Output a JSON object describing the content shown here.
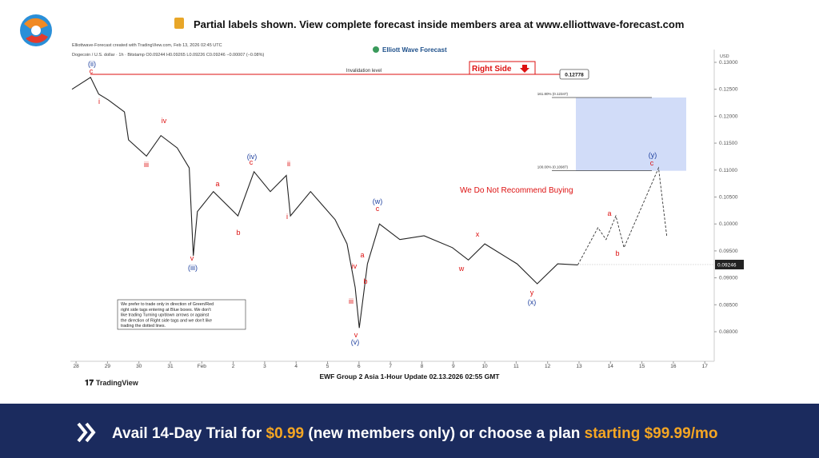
{
  "banner_top": "Partial labels shown. View complete forecast inside members area at www.elliottwave-forecast.com",
  "chart_data": {
    "type": "line",
    "header": "Elliottwave-Forecast created with TradingView.com, Feb 13, 2026 02:45 UTC",
    "subheader": "Dogecoin / U.S. dollar · 1h · Bitstamp  O0.09244 H0.09265 L0.09226 C0.09246 −0.00007 (−0.08%)",
    "brand": "Elliott Wave Forecast",
    "axis_unit": "USD",
    "xlim": [
      -0.18,
      20.3
    ],
    "xticks": [
      {
        "value": 0,
        "label": "28"
      },
      {
        "value": 1,
        "label": "29"
      },
      {
        "value": 2,
        "label": "30"
      },
      {
        "value": 3,
        "label": "31"
      },
      {
        "value": 4,
        "label": "Feb"
      },
      {
        "value": 5,
        "label": "2"
      },
      {
        "value": 6,
        "label": "3"
      },
      {
        "value": 7,
        "label": "4"
      },
      {
        "value": 8,
        "label": "5"
      },
      {
        "value": 9,
        "label": "6"
      },
      {
        "value": 10,
        "label": "7"
      },
      {
        "value": 11,
        "label": "8"
      },
      {
        "value": 12,
        "label": "9"
      },
      {
        "value": 13,
        "label": "10"
      },
      {
        "value": 14,
        "label": "11"
      },
      {
        "value": 15,
        "label": "12"
      },
      {
        "value": 16,
        "label": "13"
      },
      {
        "value": 17,
        "label": "14"
      },
      {
        "value": 18,
        "label": "15"
      },
      {
        "value": 19,
        "label": "16"
      },
      {
        "value": 20,
        "label": "17"
      }
    ],
    "ylim": [
      0.07451,
      0.13237
    ],
    "yticks": [
      {
        "value": 0.13,
        "label": "0.13000"
      },
      {
        "value": 0.125,
        "label": "0.12500"
      },
      {
        "value": 0.12,
        "label": "0.12000"
      },
      {
        "value": 0.115,
        "label": "0.11500"
      },
      {
        "value": 0.11,
        "label": "0.11000"
      },
      {
        "value": 0.105,
        "label": "0.10500"
      },
      {
        "value": 0.1,
        "label": "0.10000"
      },
      {
        "value": 0.095,
        "label": "0.09500"
      },
      {
        "value": 0.09,
        "label": "0.09000"
      },
      {
        "value": 0.085,
        "label": "0.08500"
      },
      {
        "value": 0.08,
        "label": "0.08000"
      }
    ],
    "series": [
      {
        "color": "#222222",
        "dashed": false,
        "x": [
          -0.13,
          0.46,
          0.72,
          1.03,
          1.54,
          1.67,
          2.24,
          2.7,
          3.22,
          3.6,
          3.73,
          3.86,
          4.37,
          5.15,
          5.66,
          6.18,
          6.69,
          6.82,
          7.46,
          8.24,
          8.62,
          8.88,
          9.01,
          9.27,
          9.65,
          10.3,
          11.07,
          11.97,
          12.48,
          13.0,
          14.03,
          14.67,
          15.32,
          15.96
        ],
        "values": [
          0.125,
          0.1272,
          0.1241,
          0.123,
          0.1208,
          0.1156,
          0.1126,
          0.1164,
          0.1141,
          0.1104,
          0.0941,
          0.1023,
          0.106,
          0.1015,
          0.1097,
          0.106,
          0.109,
          0.1015,
          0.106,
          0.1008,
          0.0963,
          0.0882,
          0.0807,
          0.0926,
          0.1,
          0.0971,
          0.0978,
          0.0956,
          0.0933,
          0.0963,
          0.0926,
          0.0889,
          0.0926,
          0.0924
        ]
      },
      {
        "color": "#333333",
        "dashed": true,
        "x": [
          15.96,
          16.6,
          16.86,
          17.17,
          17.43,
          18.53,
          18.79
        ],
        "values": [
          0.0924,
          0.0993,
          0.0971,
          0.1015,
          0.0956,
          0.1104,
          0.0978
        ]
      }
    ],
    "invalidation": {
      "value": 0.12778,
      "label": "Invalidation level"
    },
    "right_side": "Right Side",
    "fib_levels": [
      {
        "value": 0.12347,
        "label": "161.80% (0.12347)"
      },
      {
        "value": 0.10987,
        "label": "100.00% (0.10987)"
      }
    ],
    "last_price": 0.09246,
    "warning": "We Do Not Recommend Buying",
    "wave_labels": [
      "(ii)",
      "c",
      "i",
      "iv",
      "iii",
      "(iii)",
      "v",
      "a",
      "b",
      "(iv)",
      "c",
      "ii",
      "i",
      "(w)",
      "c",
      "a",
      "iv",
      "b",
      "iii",
      "v",
      "(v)",
      "x",
      "w",
      "y",
      "(x)",
      "a",
      "b",
      "(y)",
      "c"
    ],
    "note": [
      "We prefer to trade only in direction of Green/Red",
      "right side tags entering at Blue boxes. We don't",
      "like trading Turning up/down arrows or against",
      "the direction of Right side tags and we don't like",
      "trading the dotted lines."
    ],
    "footer": "EWF Group 2 Asia 1-Hour Update 02.13.2026 02:55 GMT",
    "tv_logo": "TradingView"
  },
  "promo": [
    "Avail 14-Day Trial for ",
    "$0.99",
    " (new members only) or choose a plan ",
    "starting $99.99/mo"
  ]
}
